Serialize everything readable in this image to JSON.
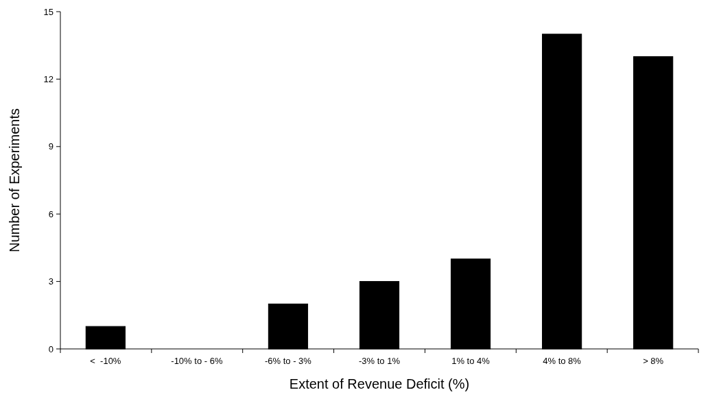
{
  "chart_data": {
    "type": "bar",
    "xlabel": "Extent of Revenue Deficit (%)",
    "ylabel": "Number of Experiments",
    "categories": [
      "<  -10%",
      "-10% to - 6%",
      "-6% to - 3%",
      "-3% to 1%",
      "1% to 4%",
      "4% to 8%",
      "> 8%"
    ],
    "values": [
      1,
      0,
      2,
      3,
      4,
      14,
      13
    ],
    "color": "#000000",
    "ylim": [
      0,
      15
    ],
    "yticks": [
      0,
      3,
      6,
      9,
      12,
      15
    ],
    "grid": false
  }
}
